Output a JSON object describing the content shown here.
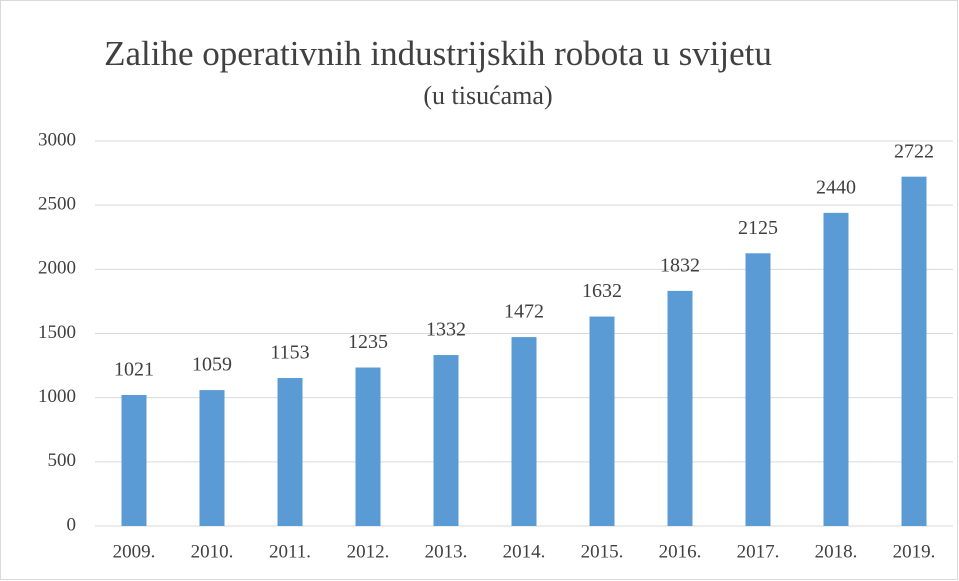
{
  "chart_data": {
    "type": "bar",
    "title": "Zalihe operativnih industrijskih robota u svijetu",
    "subtitle": "(u tisućama)",
    "categories": [
      "2009.",
      "2010.",
      "2011.",
      "2012.",
      "2013.",
      "2014.",
      "2015.",
      "2016.",
      "2017.",
      "2018.",
      "2019."
    ],
    "values": [
      1021,
      1059,
      1153,
      1235,
      1332,
      1472,
      1632,
      1832,
      2125,
      2440,
      2722
    ],
    "color": "#5b9bd5",
    "ylim": [
      0,
      3000
    ],
    "yticks": [
      0,
      500,
      1000,
      1500,
      2000,
      2500,
      3000
    ],
    "grid": true
  }
}
